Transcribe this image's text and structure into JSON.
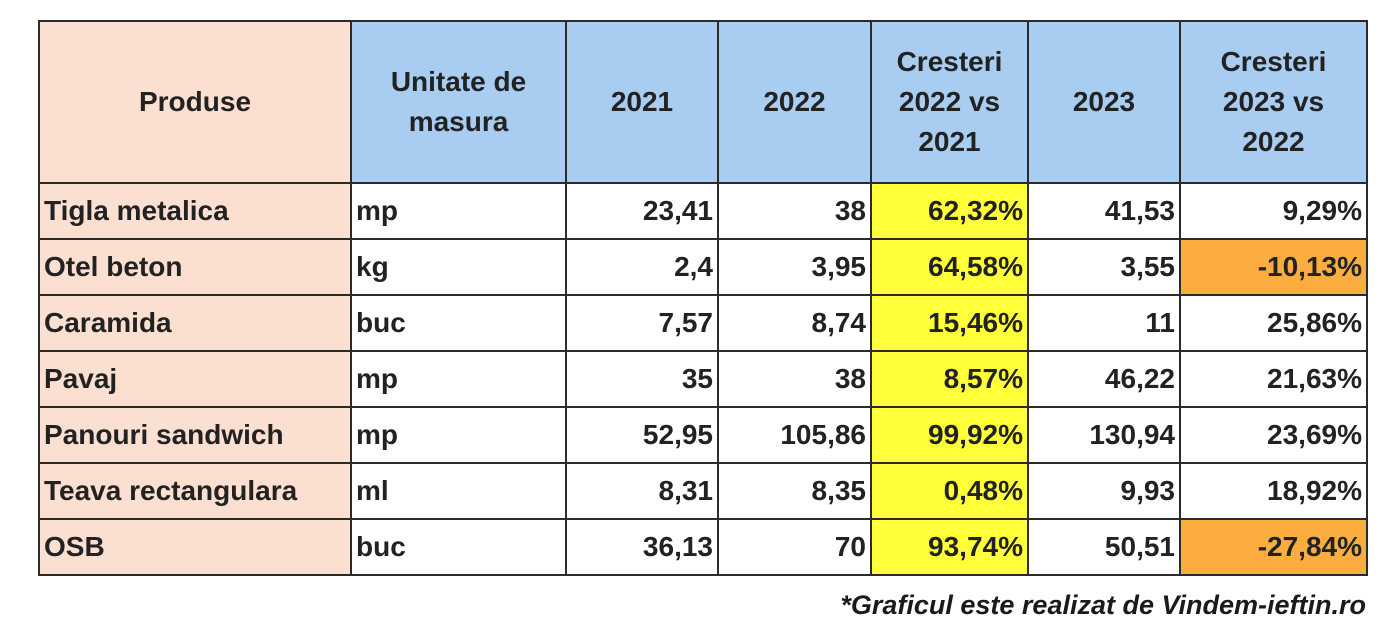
{
  "chart_data": {
    "type": "table",
    "columns": [
      "Produse",
      "Unitate de masura",
      "2021",
      "2022",
      "Cresteri 2022 vs 2021",
      "2023",
      "Cresteri 2023 vs 2022"
    ],
    "rows": [
      [
        "Tigla metalica",
        "mp",
        "23,41",
        "38",
        "62,32%",
        "41,53",
        "9,29%"
      ],
      [
        "Otel beton",
        "kg",
        "2,4",
        "3,95",
        "64,58%",
        "3,55",
        "-10,13%"
      ],
      [
        "Caramida",
        "buc",
        "7,57",
        "8,74",
        "15,46%",
        "11",
        "25,86%"
      ],
      [
        "Pavaj",
        "mp",
        "35",
        "38",
        "8,57%",
        "46,22",
        "21,63%"
      ],
      [
        "Panouri sandwich",
        "mp",
        "52,95",
        "105,86",
        "99,92%",
        "130,94",
        "23,69%"
      ],
      [
        "Teava rectangulara",
        "ml",
        "8,31",
        "8,35",
        "0,48%",
        "9,93",
        "18,92%"
      ],
      [
        "OSB",
        "buc",
        "36,13",
        "70",
        "93,74%",
        "50,51",
        "-27,84%"
      ]
    ],
    "footnote": "*Graficul este realizat de Vindem-ieftin.ro"
  },
  "colors": {
    "header_blue": "#a8cdf0",
    "product_peach": "#fbe0d2",
    "growth_2022_yellow": "#ffff3a",
    "negative_orange": "#fbae3f"
  }
}
